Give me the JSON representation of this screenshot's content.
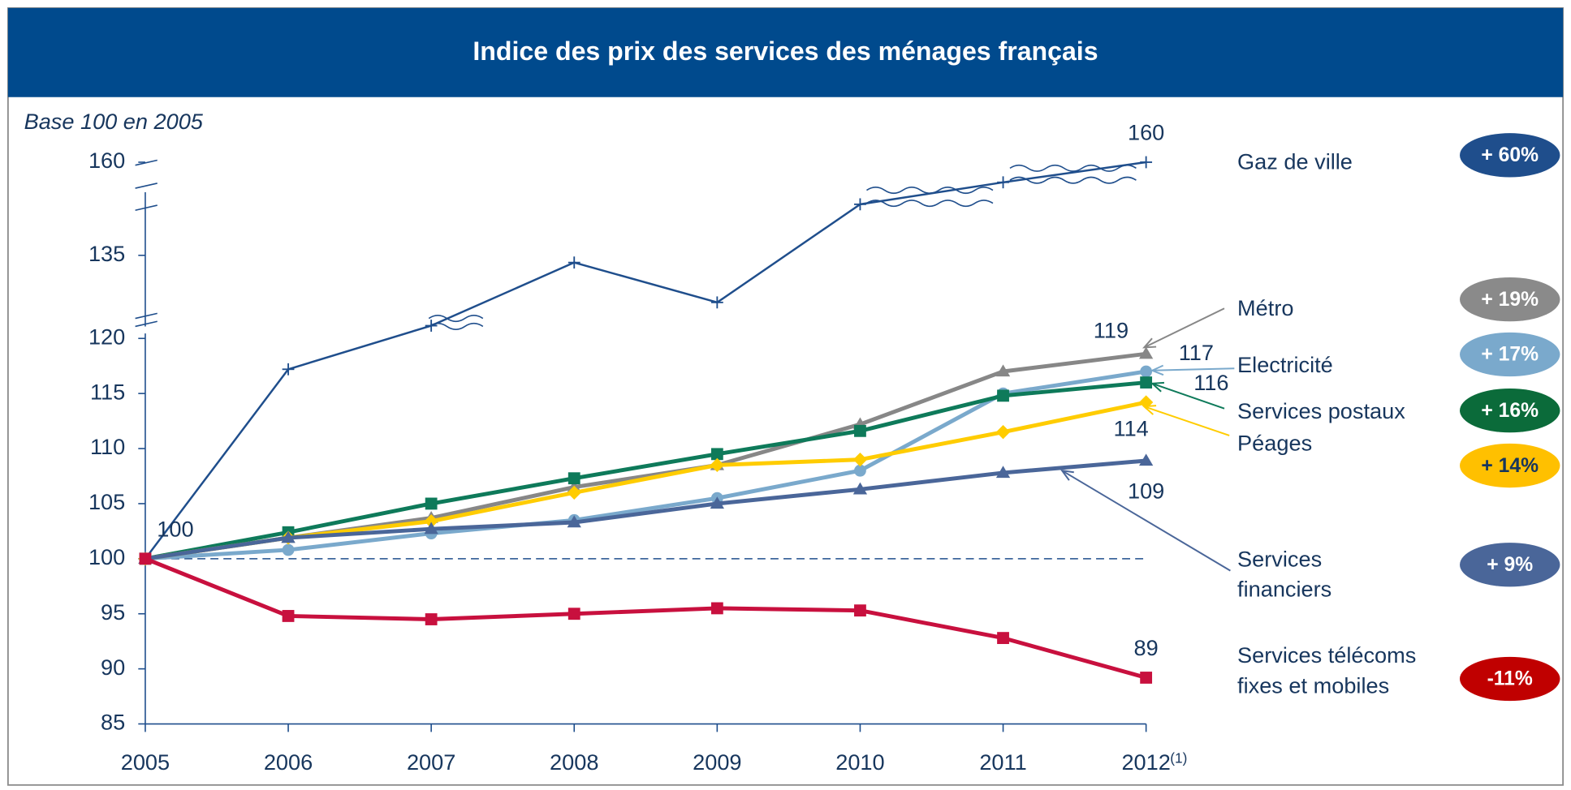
{
  "chart_data": {
    "type": "line",
    "title": "Indice des prix des services des ménages français",
    "subtitle": "Base 100 en 2005",
    "categories": [
      "2005",
      "2006",
      "2007",
      "2008",
      "2009",
      "2010",
      "2011",
      "2012"
    ],
    "x_footnote": "(1)",
    "ylim": [
      85,
      160
    ],
    "yticks": [
      85,
      90,
      95,
      100,
      105,
      110,
      115,
      120,
      135,
      160
    ],
    "axis_break": [
      120,
      135
    ],
    "reference_line": 100,
    "series": [
      {
        "name": "Gaz de ville",
        "color": "#1f4e8c",
        "marker": "cross",
        "badge": "+ 60%",
        "badge_color": "#1f4e8c",
        "badge_text_color": "#ffffff",
        "values": [
          100,
          117.2,
          122.3,
          133.7,
          126.5,
          148.7,
          154.6,
          160
        ],
        "value_labels": [
          "100",
          null,
          null,
          null,
          null,
          null,
          null,
          "160"
        ]
      },
      {
        "name": "Métro",
        "color": "#878787",
        "marker": "triangle",
        "badge": "+ 19%",
        "badge_color": "#8a8a8a",
        "badge_text_color": "#ffffff",
        "values": [
          100,
          101.9,
          103.7,
          106.5,
          108.5,
          112.2,
          117.0,
          118.6
        ],
        "value_labels": [
          null,
          null,
          null,
          null,
          null,
          null,
          null,
          "119"
        ]
      },
      {
        "name": "Electricité",
        "color": "#7aa9cc",
        "marker": "circle",
        "badge": "+ 17%",
        "badge_color": "#7aa9cc",
        "badge_text_color": "#ffffff",
        "values": [
          100,
          100.8,
          102.3,
          103.5,
          105.5,
          108.0,
          115.0,
          117.0
        ],
        "value_labels": [
          null,
          null,
          null,
          null,
          null,
          null,
          null,
          "117"
        ]
      },
      {
        "name": "Services postaux",
        "color": "#0e7a5a",
        "marker": "square",
        "badge": "+ 16%",
        "badge_color": "#0b6b3a",
        "badge_text_color": "#ffffff",
        "values": [
          100,
          102.4,
          105.0,
          107.3,
          109.5,
          111.6,
          114.8,
          116.0
        ],
        "value_labels": [
          null,
          null,
          null,
          null,
          null,
          null,
          null,
          "116"
        ]
      },
      {
        "name": "Péages",
        "color": "#ffcc00",
        "marker": "diamond",
        "badge": "+ 14%",
        "badge_color": "#ffc000",
        "badge_text_color": "#17365d",
        "values": [
          100,
          101.9,
          103.4,
          106.0,
          108.5,
          109.0,
          111.5,
          114.2
        ],
        "value_labels": [
          null,
          null,
          null,
          null,
          null,
          null,
          null,
          "114"
        ]
      },
      {
        "name": "Services financiers",
        "color": "#4a6699",
        "marker": "triangle",
        "badge": "+ 9%",
        "badge_color": "#4a6699",
        "badge_text_color": "#ffffff",
        "values": [
          100,
          101.9,
          102.7,
          103.3,
          105.0,
          106.3,
          107.8,
          108.9
        ],
        "value_labels": [
          null,
          null,
          null,
          null,
          null,
          null,
          null,
          "109"
        ]
      },
      {
        "name": "Services télécoms fixes et mobiles",
        "color": "#c8103e",
        "marker": "square",
        "badge": "-11%",
        "badge_color": "#c00000",
        "badge_text_color": "#ffffff",
        "values": [
          100,
          94.8,
          94.5,
          95.0,
          95.5,
          95.3,
          92.8,
          89.2
        ],
        "value_labels": [
          null,
          null,
          null,
          null,
          null,
          null,
          null,
          "89"
        ]
      }
    ]
  }
}
